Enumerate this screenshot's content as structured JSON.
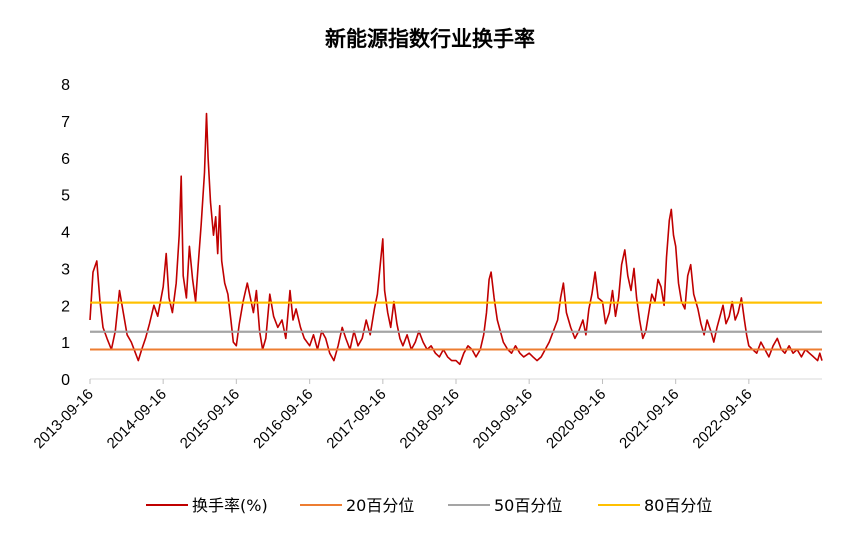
{
  "chart_data": {
    "type": "line",
    "title": "新能源指数行业换手率",
    "xlabel": "",
    "ylabel": "",
    "x_start": "2013-09-16",
    "x_end": "2023-09-16",
    "xticks": [
      "2013-09-16",
      "2014-09-16",
      "2015-09-16",
      "2016-09-16",
      "2017-09-16",
      "2018-09-16",
      "2019-09-16",
      "2020-09-16",
      "2021-09-16",
      "2022-09-16"
    ],
    "ylim": [
      0,
      8
    ],
    "yticks": [
      "0",
      "1",
      "2",
      "3",
      "4",
      "5",
      "6",
      "7",
      "8"
    ],
    "grid": false,
    "legend_position": "bottom",
    "series": [
      {
        "name": "换手率(%)",
        "color": "#C00000",
        "points": [
          [
            "2013-09-16",
            1.6
          ],
          [
            "2013-10-01",
            2.9
          ],
          [
            "2013-10-20",
            3.2
          ],
          [
            "2013-11-05",
            2.1
          ],
          [
            "2013-11-20",
            1.4
          ],
          [
            "2013-12-10",
            1.1
          ],
          [
            "2014-01-01",
            0.8
          ],
          [
            "2014-01-20",
            1.3
          ],
          [
            "2014-02-10",
            2.4
          ],
          [
            "2014-03-01",
            1.8
          ],
          [
            "2014-03-20",
            1.2
          ],
          [
            "2014-04-10",
            1.0
          ],
          [
            "2014-05-01",
            0.7
          ],
          [
            "2014-05-15",
            0.5
          ],
          [
            "2014-06-01",
            0.8
          ],
          [
            "2014-06-20",
            1.1
          ],
          [
            "2014-07-10",
            1.5
          ],
          [
            "2014-08-01",
            2.0
          ],
          [
            "2014-08-20",
            1.7
          ],
          [
            "2014-09-16",
            2.5
          ],
          [
            "2014-10-01",
            3.4
          ],
          [
            "2014-10-15",
            2.2
          ],
          [
            "2014-11-01",
            1.8
          ],
          [
            "2014-11-20",
            2.6
          ],
          [
            "2014-12-05",
            3.9
          ],
          [
            "2014-12-15",
            5.5
          ],
          [
            "2014-12-25",
            2.8
          ],
          [
            "2015-01-10",
            2.2
          ],
          [
            "2015-01-25",
            3.6
          ],
          [
            "2015-02-10",
            2.7
          ],
          [
            "2015-02-25",
            2.1
          ],
          [
            "2015-03-10",
            3.1
          ],
          [
            "2015-03-25",
            4.2
          ],
          [
            "2015-04-10",
            5.6
          ],
          [
            "2015-04-20",
            7.2
          ],
          [
            "2015-04-28",
            6.0
          ],
          [
            "2015-05-10",
            4.8
          ],
          [
            "2015-05-25",
            3.9
          ],
          [
            "2015-06-05",
            4.4
          ],
          [
            "2015-06-15",
            3.4
          ],
          [
            "2015-06-25",
            4.7
          ],
          [
            "2015-07-05",
            3.2
          ],
          [
            "2015-07-20",
            2.6
          ],
          [
            "2015-08-05",
            2.3
          ],
          [
            "2015-08-20",
            1.6
          ],
          [
            "2015-09-01",
            1.0
          ],
          [
            "2015-09-16",
            0.9
          ],
          [
            "2015-10-01",
            1.5
          ],
          [
            "2015-10-20",
            2.1
          ],
          [
            "2015-11-10",
            2.6
          ],
          [
            "2015-11-25",
            2.2
          ],
          [
            "2015-12-10",
            1.8
          ],
          [
            "2015-12-25",
            2.4
          ],
          [
            "2016-01-10",
            1.3
          ],
          [
            "2016-01-25",
            0.8
          ],
          [
            "2016-02-10",
            1.1
          ],
          [
            "2016-03-01",
            2.3
          ],
          [
            "2016-03-20",
            1.7
          ],
          [
            "2016-04-10",
            1.4
          ],
          [
            "2016-05-01",
            1.6
          ],
          [
            "2016-05-20",
            1.1
          ],
          [
            "2016-06-10",
            2.4
          ],
          [
            "2016-06-25",
            1.6
          ],
          [
            "2016-07-10",
            1.9
          ],
          [
            "2016-08-01",
            1.4
          ],
          [
            "2016-08-20",
            1.1
          ],
          [
            "2016-09-16",
            0.9
          ],
          [
            "2016-10-05",
            1.2
          ],
          [
            "2016-10-25",
            0.8
          ],
          [
            "2016-11-15",
            1.3
          ],
          [
            "2016-12-05",
            1.1
          ],
          [
            "2016-12-25",
            0.7
          ],
          [
            "2017-01-15",
            0.5
          ],
          [
            "2017-02-05",
            0.9
          ],
          [
            "2017-02-25",
            1.4
          ],
          [
            "2017-03-15",
            1.1
          ],
          [
            "2017-04-05",
            0.8
          ],
          [
            "2017-04-25",
            1.3
          ],
          [
            "2017-05-15",
            0.9
          ],
          [
            "2017-06-05",
            1.1
          ],
          [
            "2017-06-25",
            1.6
          ],
          [
            "2017-07-15",
            1.2
          ],
          [
            "2017-08-05",
            1.9
          ],
          [
            "2017-08-20",
            2.3
          ],
          [
            "2017-09-05",
            3.2
          ],
          [
            "2017-09-16",
            3.8
          ],
          [
            "2017-09-25",
            2.4
          ],
          [
            "2017-10-10",
            1.8
          ],
          [
            "2017-10-25",
            1.4
          ],
          [
            "2017-11-10",
            2.1
          ],
          [
            "2017-11-25",
            1.5
          ],
          [
            "2017-12-10",
            1.1
          ],
          [
            "2017-12-25",
            0.9
          ],
          [
            "2018-01-15",
            1.2
          ],
          [
            "2018-02-05",
            0.8
          ],
          [
            "2018-02-25",
            1.0
          ],
          [
            "2018-03-15",
            1.3
          ],
          [
            "2018-04-05",
            1.0
          ],
          [
            "2018-04-25",
            0.8
          ],
          [
            "2018-05-15",
            0.9
          ],
          [
            "2018-06-05",
            0.7
          ],
          [
            "2018-06-25",
            0.6
          ],
          [
            "2018-07-15",
            0.8
          ],
          [
            "2018-08-05",
            0.6
          ],
          [
            "2018-08-25",
            0.5
          ],
          [
            "2018-09-16",
            0.5
          ],
          [
            "2018-10-05",
            0.4
          ],
          [
            "2018-10-25",
            0.7
          ],
          [
            "2018-11-15",
            0.9
          ],
          [
            "2018-12-05",
            0.8
          ],
          [
            "2018-12-25",
            0.6
          ],
          [
            "2019-01-15",
            0.8
          ],
          [
            "2019-02-01",
            1.2
          ],
          [
            "2019-02-15",
            1.8
          ],
          [
            "2019-02-28",
            2.7
          ],
          [
            "2019-03-10",
            2.9
          ],
          [
            "2019-03-25",
            2.2
          ],
          [
            "2019-04-10",
            1.6
          ],
          [
            "2019-04-25",
            1.3
          ],
          [
            "2019-05-10",
            1.0
          ],
          [
            "2019-06-01",
            0.8
          ],
          [
            "2019-06-20",
            0.7
          ],
          [
            "2019-07-10",
            0.9
          ],
          [
            "2019-08-01",
            0.7
          ],
          [
            "2019-08-20",
            0.6
          ],
          [
            "2019-09-16",
            0.7
          ],
          [
            "2019-10-05",
            0.6
          ],
          [
            "2019-10-25",
            0.5
          ],
          [
            "2019-11-15",
            0.6
          ],
          [
            "2019-12-05",
            0.8
          ],
          [
            "2019-12-25",
            1.0
          ],
          [
            "2020-01-15",
            1.3
          ],
          [
            "2020-02-05",
            1.6
          ],
          [
            "2020-02-20",
            2.2
          ],
          [
            "2020-03-05",
            2.6
          ],
          [
            "2020-03-20",
            1.8
          ],
          [
            "2020-04-10",
            1.4
          ],
          [
            "2020-05-01",
            1.1
          ],
          [
            "2020-05-20",
            1.3
          ],
          [
            "2020-06-10",
            1.6
          ],
          [
            "2020-06-25",
            1.2
          ],
          [
            "2020-07-10",
            1.9
          ],
          [
            "2020-07-25",
            2.3
          ],
          [
            "2020-08-10",
            2.9
          ],
          [
            "2020-08-25",
            2.2
          ],
          [
            "2020-09-16",
            2.1
          ],
          [
            "2020-10-01",
            1.5
          ],
          [
            "2020-10-20",
            1.8
          ],
          [
            "2020-11-05",
            2.4
          ],
          [
            "2020-11-20",
            1.7
          ],
          [
            "2020-12-05",
            2.2
          ],
          [
            "2020-12-20",
            3.1
          ],
          [
            "2021-01-05",
            3.5
          ],
          [
            "2021-01-20",
            2.8
          ],
          [
            "2021-02-05",
            2.4
          ],
          [
            "2021-02-20",
            3.0
          ],
          [
            "2021-03-05",
            2.2
          ],
          [
            "2021-03-20",
            1.6
          ],
          [
            "2021-04-05",
            1.1
          ],
          [
            "2021-04-20",
            1.3
          ],
          [
            "2021-05-05",
            1.8
          ],
          [
            "2021-05-20",
            2.3
          ],
          [
            "2021-06-05",
            2.1
          ],
          [
            "2021-06-20",
            2.7
          ],
          [
            "2021-07-05",
            2.5
          ],
          [
            "2021-07-20",
            2.0
          ],
          [
            "2021-08-01",
            3.3
          ],
          [
            "2021-08-15",
            4.3
          ],
          [
            "2021-08-25",
            4.6
          ],
          [
            "2021-09-05",
            3.9
          ],
          [
            "2021-09-16",
            3.6
          ],
          [
            "2021-09-30",
            2.6
          ],
          [
            "2021-10-15",
            2.1
          ],
          [
            "2021-11-01",
            1.9
          ],
          [
            "2021-11-15",
            2.8
          ],
          [
            "2021-11-30",
            3.1
          ],
          [
            "2021-12-15",
            2.3
          ],
          [
            "2022-01-05",
            1.9
          ],
          [
            "2022-01-20",
            1.5
          ],
          [
            "2022-02-05",
            1.2
          ],
          [
            "2022-02-20",
            1.6
          ],
          [
            "2022-03-10",
            1.3
          ],
          [
            "2022-03-25",
            1.0
          ],
          [
            "2022-04-10",
            1.4
          ],
          [
            "2022-04-25",
            1.7
          ],
          [
            "2022-05-10",
            2.0
          ],
          [
            "2022-05-25",
            1.5
          ],
          [
            "2022-06-10",
            1.7
          ],
          [
            "2022-06-25",
            2.1
          ],
          [
            "2022-07-10",
            1.6
          ],
          [
            "2022-07-25",
            1.8
          ],
          [
            "2022-08-10",
            2.2
          ],
          [
            "2022-08-25",
            1.6
          ],
          [
            "2022-09-05",
            1.2
          ],
          [
            "2022-09-16",
            0.9
          ],
          [
            "2022-10-05",
            0.8
          ],
          [
            "2022-10-25",
            0.7
          ],
          [
            "2022-11-15",
            1.0
          ],
          [
            "2022-12-05",
            0.8
          ],
          [
            "2022-12-25",
            0.6
          ],
          [
            "2023-01-15",
            0.9
          ],
          [
            "2023-02-05",
            1.1
          ],
          [
            "2023-02-25",
            0.8
          ],
          [
            "2023-03-15",
            0.7
          ],
          [
            "2023-04-05",
            0.9
          ],
          [
            "2023-04-25",
            0.7
          ],
          [
            "2023-05-15",
            0.8
          ],
          [
            "2023-06-05",
            0.6
          ],
          [
            "2023-06-25",
            0.8
          ],
          [
            "2023-07-15",
            0.7
          ],
          [
            "2023-08-05",
            0.6
          ],
          [
            "2023-08-25",
            0.5
          ],
          [
            "2023-09-05",
            0.7
          ],
          [
            "2023-09-16",
            0.5
          ]
        ]
      },
      {
        "name": "20百分位",
        "color": "#ED7D31",
        "value": 0.8
      },
      {
        "name": "50百分位",
        "color": "#A5A5A5",
        "value": 1.28
      },
      {
        "name": "80百分位",
        "color": "#FFC000",
        "value": 2.07
      }
    ]
  }
}
